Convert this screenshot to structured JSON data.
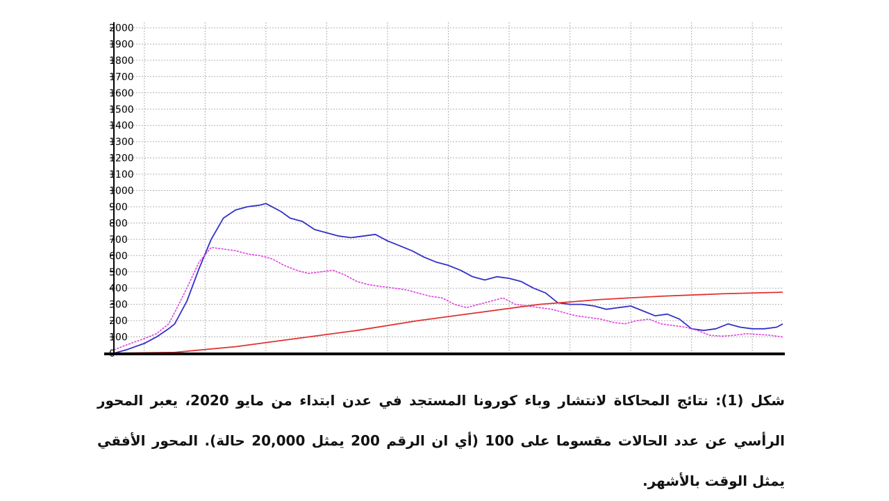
{
  "chart_data": {
    "type": "line",
    "ylim": [
      0,
      2000
    ],
    "yticks": [
      0,
      100,
      200,
      300,
      400,
      500,
      600,
      700,
      800,
      900,
      1000,
      1100,
      1200,
      1300,
      1400,
      1500,
      1600,
      1700,
      1800,
      1900,
      2000
    ],
    "xlim": [
      0,
      11
    ],
    "grid": true,
    "colors": {
      "blue": "#3030c8",
      "magenta": "#e040e0",
      "red": "#e03030"
    },
    "series": [
      {
        "color": "blue",
        "x": [
          0,
          0.2,
          0.5,
          0.7,
          0.9,
          1.0,
          1.2,
          1.4,
          1.6,
          1.8,
          2.0,
          2.2,
          2.3,
          2.4,
          2.5,
          2.6,
          2.75,
          2.9,
          3.1,
          3.3,
          3.5,
          3.7,
          3.9,
          4.1,
          4.3,
          4.5,
          4.7,
          4.9,
          5.1,
          5.3,
          5.5,
          5.7,
          5.9,
          6.1,
          6.3,
          6.5,
          6.7,
          6.9,
          7.1,
          7.3,
          7.5,
          7.7,
          7.9,
          8.1,
          8.3,
          8.5,
          8.7,
          8.9,
          9.1,
          9.3,
          9.5,
          9.7,
          9.9,
          10.1,
          10.3,
          10.5,
          10.7,
          10.9,
          11.0
        ],
        "values": [
          0,
          20,
          60,
          100,
          150,
          180,
          320,
          520,
          700,
          830,
          880,
          900,
          905,
          910,
          920,
          900,
          870,
          830,
          810,
          760,
          740,
          720,
          710,
          720,
          730,
          690,
          660,
          630,
          590,
          560,
          540,
          510,
          470,
          450,
          470,
          460,
          440,
          400,
          370,
          310,
          300,
          300,
          290,
          270,
          280,
          290,
          260,
          230,
          240,
          210,
          150,
          140,
          150,
          180,
          160,
          150,
          150,
          160,
          180
        ]
      },
      {
        "color": "magenta",
        "x": [
          0,
          0.2,
          0.5,
          0.7,
          0.9,
          1.0,
          1.2,
          1.4,
          1.6,
          1.8,
          2.0,
          2.2,
          2.4,
          2.6,
          2.8,
          3.0,
          3.2,
          3.4,
          3.6,
          3.8,
          4.0,
          4.2,
          4.4,
          4.6,
          4.8,
          5.0,
          5.2,
          5.4,
          5.6,
          5.8,
          6.0,
          6.2,
          6.4,
          6.6,
          6.8,
          7.0,
          7.2,
          7.4,
          7.6,
          7.8,
          8.0,
          8.2,
          8.4,
          8.6,
          8.8,
          9.0,
          9.2,
          9.4,
          9.6,
          9.8,
          10.0,
          10.2,
          10.4,
          10.6,
          10.8,
          11.0
        ],
        "values": [
          20,
          50,
          90,
          120,
          180,
          250,
          400,
          560,
          650,
          640,
          630,
          610,
          600,
          580,
          540,
          510,
          490,
          500,
          510,
          480,
          440,
          420,
          410,
          400,
          390,
          370,
          350,
          340,
          300,
          280,
          300,
          320,
          340,
          300,
          290,
          280,
          270,
          250,
          230,
          220,
          210,
          190,
          180,
          200,
          210,
          180,
          170,
          160,
          140,
          110,
          105,
          110,
          120,
          115,
          110,
          100
        ]
      },
      {
        "color": "red",
        "x": [
          0,
          1.0,
          2.0,
          3.0,
          4.0,
          5.0,
          6.0,
          7.0,
          8.0,
          9.0,
          10.0,
          11.0
        ],
        "values": [
          0,
          5,
          40,
          90,
          140,
          200,
          250,
          300,
          330,
          350,
          365,
          375
        ]
      }
    ]
  },
  "caption": {
    "text": "شكل (1): نتائج المحاكاة لانتشار وباء كورونا المستجد في عدن ابتداء من مايو 2020، يعبر المحور الرأسي عن عدد الحالات مقسوما على 100 (أي ان الرقم 200 يمثل 20,000 حالة). المحور الأفقي يمثل الوقت بالأشهر."
  }
}
